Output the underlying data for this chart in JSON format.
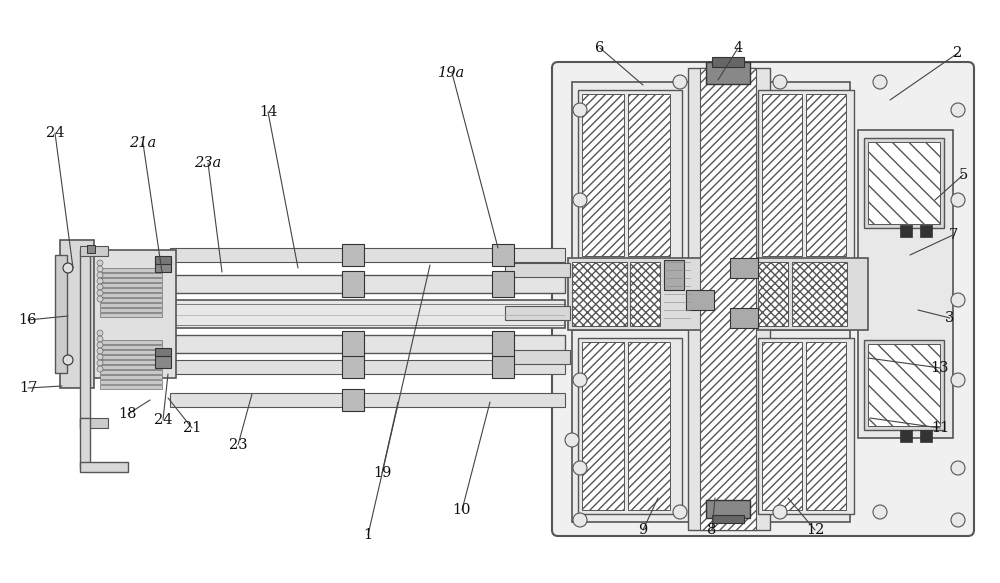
{
  "bg_color": "#ffffff",
  "lc": "#555555",
  "dc": "#333333",
  "fc_light": "#f0f0f0",
  "fc_med": "#e0e0e0",
  "fc_dark": "#cccccc",
  "fig_width": 10.0,
  "fig_height": 5.83,
  "labels": [
    [
      "1",
      368,
      535,
      430,
      265
    ],
    [
      "2",
      958,
      53,
      890,
      100
    ],
    [
      "3",
      950,
      318,
      918,
      310
    ],
    [
      "4",
      738,
      48,
      718,
      80
    ],
    [
      "5",
      963,
      175,
      935,
      200
    ],
    [
      "6",
      600,
      48,
      643,
      85
    ],
    [
      "7",
      953,
      235,
      910,
      255
    ],
    [
      "8",
      712,
      530,
      715,
      498
    ],
    [
      "9",
      643,
      530,
      658,
      498
    ],
    [
      "10",
      462,
      510,
      490,
      402
    ],
    [
      "11",
      940,
      428,
      870,
      418
    ],
    [
      "12",
      815,
      530,
      788,
      498
    ],
    [
      "13",
      940,
      368,
      868,
      358
    ],
    [
      "14",
      268,
      112,
      298,
      268
    ],
    [
      "16",
      28,
      320,
      68,
      316
    ],
    [
      "17",
      28,
      388,
      62,
      386
    ],
    [
      "18",
      128,
      414,
      150,
      400
    ],
    [
      "19",
      382,
      473,
      398,
      402
    ],
    [
      "19a",
      452,
      73,
      498,
      248
    ],
    [
      "21",
      192,
      428,
      168,
      398
    ],
    [
      "21a",
      143,
      143,
      162,
      272
    ],
    [
      "23",
      238,
      445,
      252,
      394
    ],
    [
      "23a",
      208,
      163,
      222,
      272
    ],
    [
      "24",
      55,
      133,
      73,
      268
    ],
    [
      "24",
      163,
      420,
      168,
      374
    ]
  ]
}
